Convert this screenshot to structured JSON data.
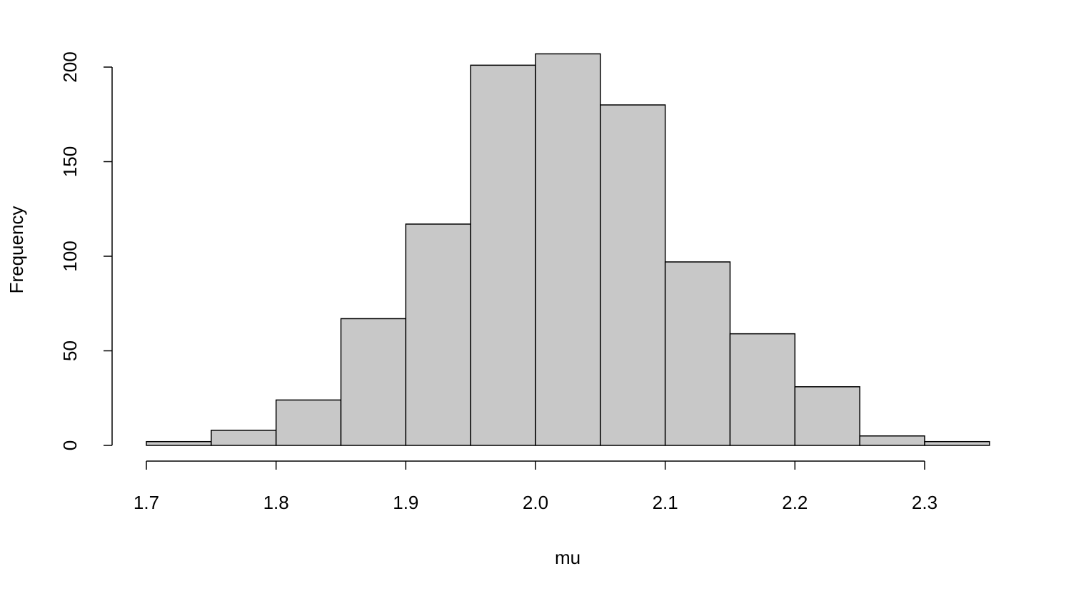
{
  "chart_data": {
    "type": "histogram",
    "x_label": "mu",
    "y_label": "Frequency",
    "bins": [
      1.7,
      1.75,
      1.8,
      1.85,
      1.9,
      1.95,
      2.0,
      2.05,
      2.1,
      2.15,
      2.2,
      2.25,
      2.3,
      2.35
    ],
    "values": [
      2,
      8,
      24,
      67,
      117,
      201,
      207,
      180,
      97,
      59,
      31,
      5,
      2
    ],
    "color": "#c8c8c8",
    "edge_color": "#000000",
    "xlim": [
      1.7,
      2.3
    ],
    "xticks": [
      1.7,
      1.8,
      1.9,
      {
        "value": 2,
        "label": "2.0"
      },
      2.1,
      2.2,
      2.3
    ],
    "ylim": [
      0,
      200
    ],
    "yticks": [
      0,
      50,
      100,
      150,
      200
    ],
    "grid": false
  }
}
